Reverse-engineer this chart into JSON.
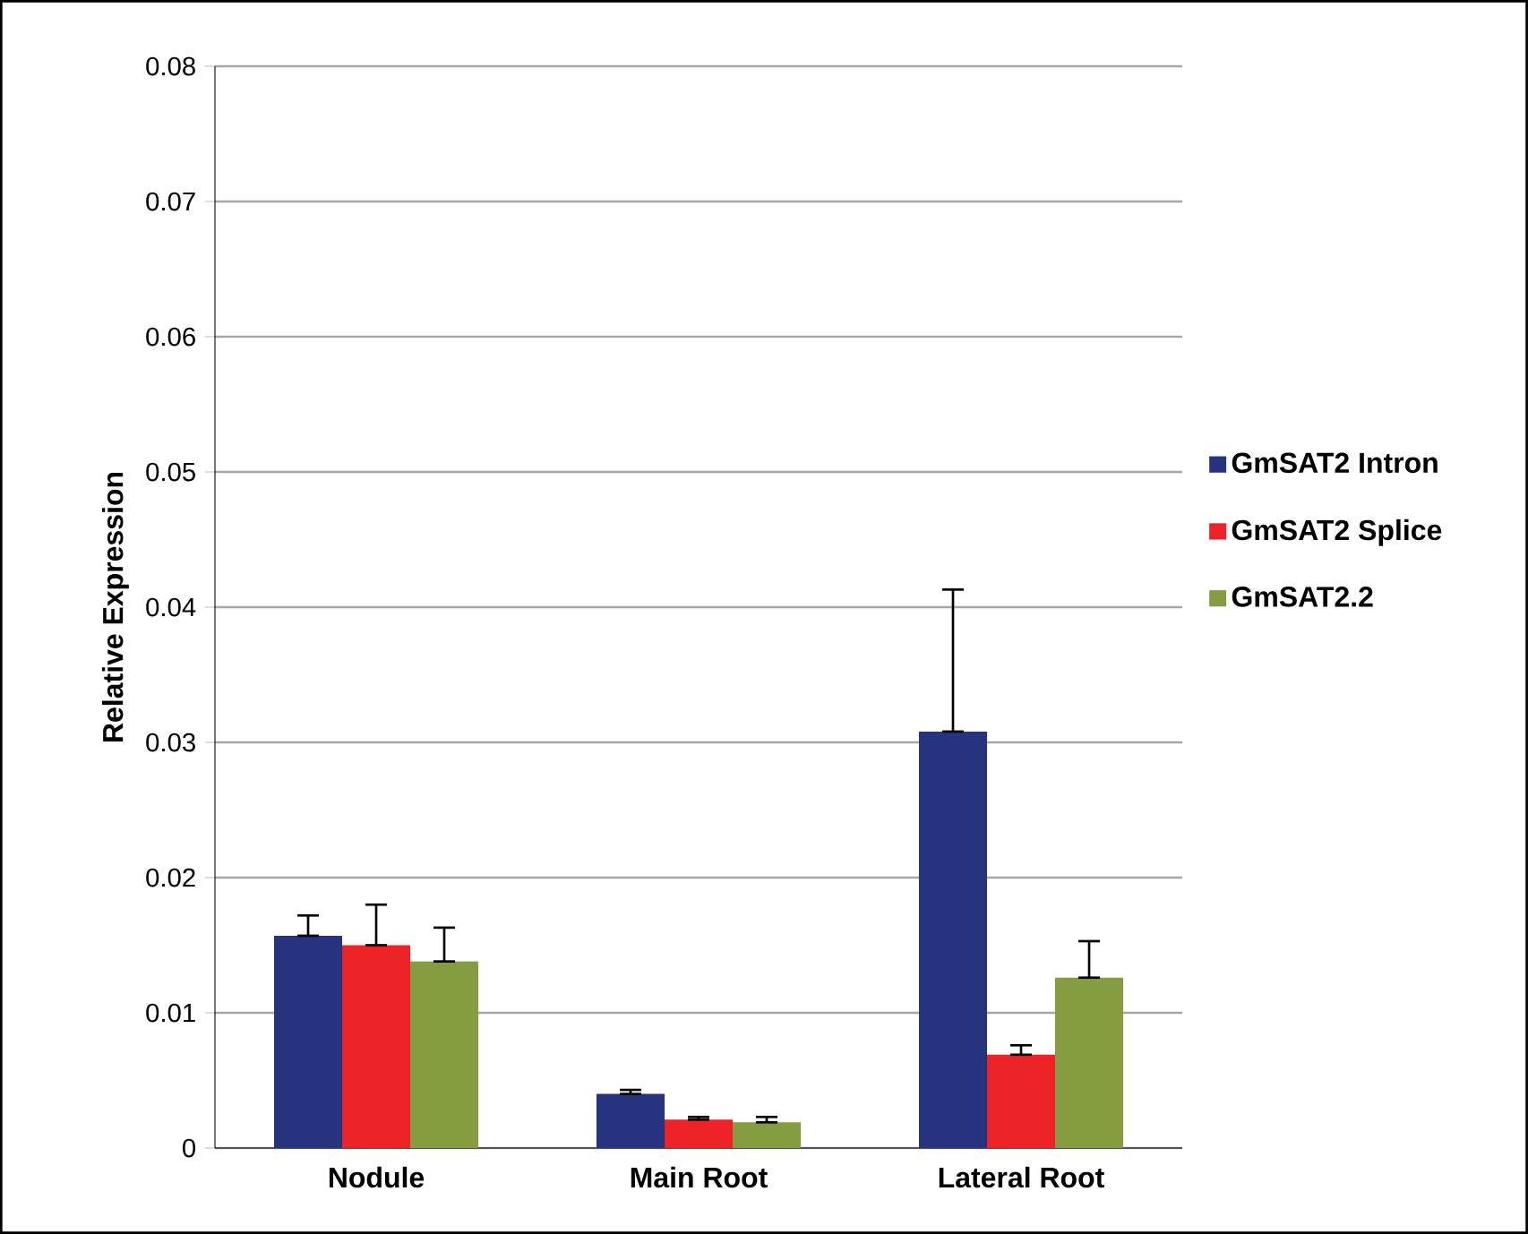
{
  "chart_data": {
    "type": "bar",
    "ylabel": "Relative Expression",
    "categories": [
      "Nodule",
      "Main Root",
      "Lateral Root"
    ],
    "series": [
      {
        "name": "GmSAT2 Intron",
        "color": "#26337f",
        "values": [
          0.0157,
          0.004,
          0.0308
        ],
        "errors": [
          [
            0.0157,
            0.0172
          ],
          [
            0.004,
            0.0043
          ],
          [
            0.0308,
            0.0413
          ]
        ]
      },
      {
        "name": "GmSAT2 Splice",
        "color": "#ec2227",
        "values": [
          0.015,
          0.0021,
          0.0069
        ],
        "errors": [
          [
            0.015,
            0.018
          ],
          [
            0.0021,
            0.0023
          ],
          [
            0.0069,
            0.0076
          ]
        ]
      },
      {
        "name": "GmSAT2.2",
        "color": "#869c40",
        "values": [
          0.0138,
          0.0019,
          0.0126
        ],
        "errors": [
          [
            0.0138,
            0.0163
          ],
          [
            0.0019,
            0.0023
          ],
          [
            0.0126,
            0.0153
          ]
        ]
      }
    ],
    "ylim": [
      0,
      0.08
    ],
    "yticks": [
      0,
      0.01,
      0.02,
      0.03,
      0.04,
      0.05,
      0.06,
      0.07,
      0.08
    ],
    "grid": "y",
    "legend": "right"
  }
}
